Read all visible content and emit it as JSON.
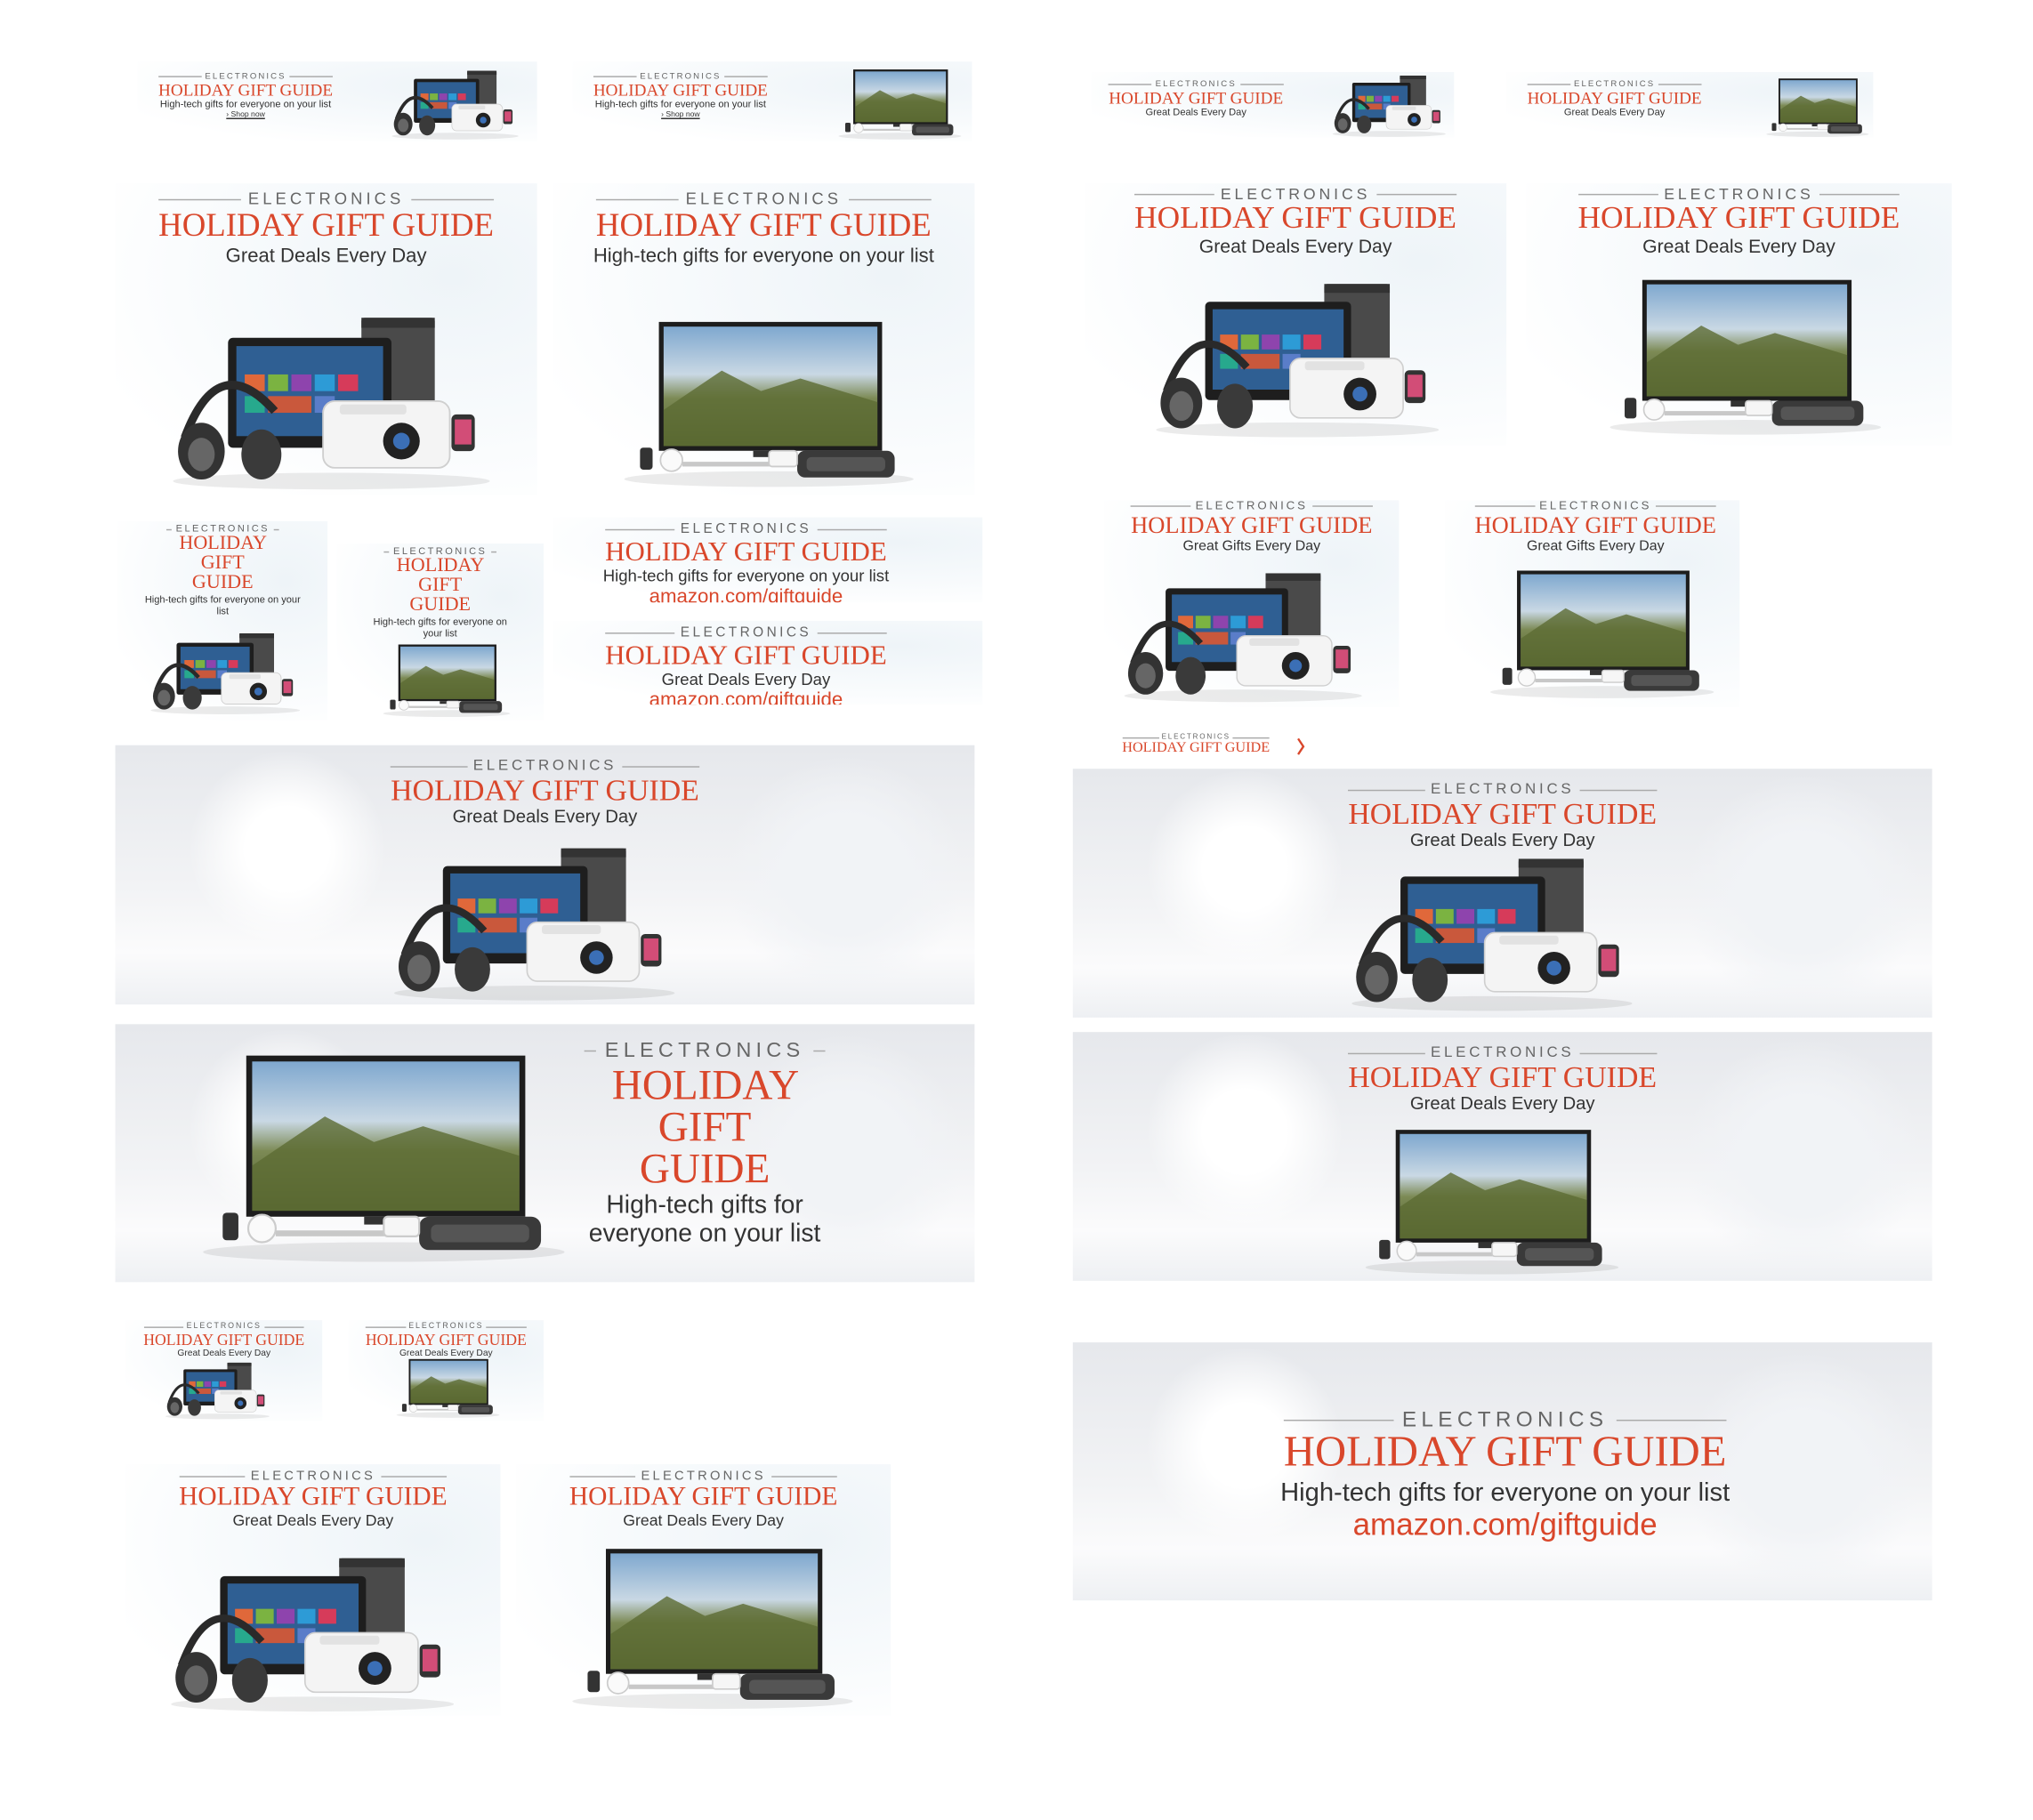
{
  "banners": [
    {
      "eyebrow": "ELECTRONICS",
      "title": "HOLIDAY GIFT GUIDE",
      "tagline": "High-tech gifts for everyone on your list",
      "link": "› Shop now"
    },
    {
      "eyebrow": "ELECTRONICS",
      "title": "HOLIDAY GIFT GUIDE",
      "tagline": "High-tech gifts for everyone on your list",
      "link": "› Shop now"
    },
    {
      "eyebrow": "ELECTRONICS",
      "title": "HOLIDAY GIFT GUIDE",
      "tagline": "Great Deals Every Day"
    },
    {
      "eyebrow": "ELECTRONICS",
      "title": "HOLIDAY GIFT GUIDE",
      "tagline": "Great Deals Every Day"
    },
    {
      "eyebrow": "ELECTRONICS",
      "title": "HOLIDAY GIFT GUIDE",
      "tagline": "Great Deals Every Day"
    },
    {
      "eyebrow": "ELECTRONICS",
      "title": "HOLIDAY GIFT GUIDE",
      "tagline": "High-tech gifts for everyone on your list"
    },
    {
      "eyebrow": "ELECTRONICS",
      "title": "HOLIDAY GIFT GUIDE",
      "tagline": "Great Deals Every Day"
    },
    {
      "eyebrow": "ELECTRONICS",
      "title": "HOLIDAY GIFT GUIDE",
      "tagline": "Great Deals Every Day"
    },
    {
      "eyebrow": "ELECTRONICS",
      "title": "HOLIDAY GIFT GUIDE",
      "tagline": "High-tech gifts for everyone on your list"
    },
    {
      "eyebrow": "ELECTRONICS",
      "title": "HOLIDAY GIFT GUIDE",
      "tagline": "High-tech gifts for everyone on your list"
    },
    {
      "eyebrow": "ELECTRONICS",
      "title": "HOLIDAY GIFT GUIDE",
      "tagline": "High-tech gifts for everyone on your list",
      "link": "amazon.com/giftguide"
    },
    {
      "eyebrow": "ELECTRONICS",
      "title": "HOLIDAY GIFT GUIDE",
      "tagline": "Great Deals Every Day",
      "link": "amazon.com/giftguide"
    },
    {
      "eyebrow": "ELECTRONICS",
      "title": "HOLIDAY GIFT GUIDE",
      "tagline": "Great Gifts Every Day"
    },
    {
      "eyebrow": "ELECTRONICS",
      "title": "HOLIDAY GIFT GUIDE",
      "tagline": "Great Gifts Every Day"
    },
    {
      "eyebrow": "ELECTRONICS",
      "title": "HOLIDAY GIFT GUIDE"
    },
    {
      "eyebrow": "ELECTRONICS",
      "title": "HOLIDAY GIFT GUIDE",
      "tagline": "Great Deals Every Day"
    },
    {
      "eyebrow": "ELECTRONICS",
      "title": "HOLIDAY GIFT GUIDE",
      "tagline": "High-tech gifts for everyone on your list"
    },
    {
      "eyebrow": "ELECTRONICS",
      "title": "HOLIDAY GIFT GUIDE",
      "tagline": "Great Deals Every Day"
    },
    {
      "eyebrow": "ELECTRONICS",
      "title": "HOLIDAY GIFT GUIDE",
      "tagline": "Great Deals Every Day"
    },
    {
      "eyebrow": "ELECTRONICS",
      "title": "HOLIDAY GIFT GUIDE",
      "tagline": "Great Deals Every Day"
    },
    {
      "eyebrow": "ELECTRONICS",
      "title": "HOLIDAY GIFT GUIDE",
      "tagline": "Great Deals Every Day"
    },
    {
      "eyebrow": "ELECTRONICS",
      "title": "HOLIDAY GIFT GUIDE",
      "tagline": "Great Deals Every Day"
    },
    {
      "eyebrow": "ELECTRONICS",
      "title": "HOLIDAY GIFT GUIDE",
      "tagline": "Great Deals Every Day"
    },
    {
      "eyebrow": "ELECTRONICS",
      "title": "HOLIDAY GIFT GUIDE",
      "tagline": "High-tech gifts for everyone on your list",
      "link": "amazon.com/giftguide"
    }
  ]
}
